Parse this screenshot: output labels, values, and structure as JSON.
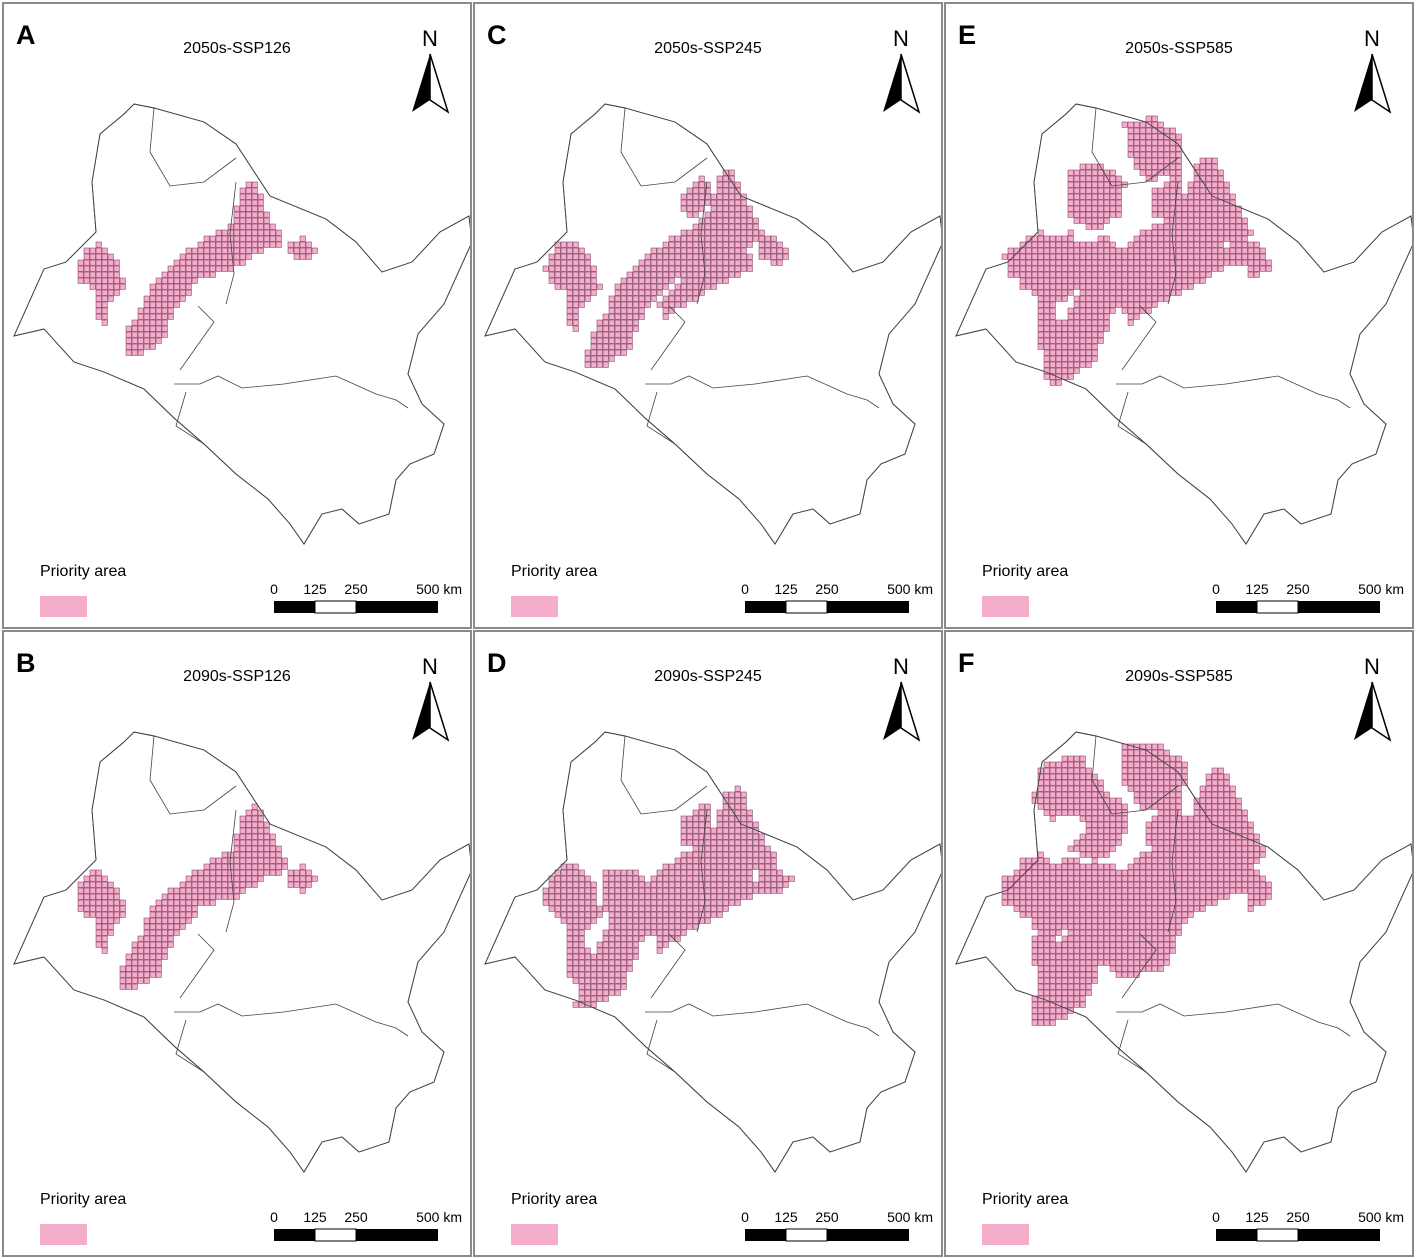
{
  "figure": {
    "panels": [
      {
        "letter": "A",
        "title": "2050s-SSP126",
        "extent": 0.0
      },
      {
        "letter": "B",
        "title": "2090s-SSP126",
        "extent": 0.15
      },
      {
        "letter": "C",
        "title": "2050s-SSP245",
        "extent": 0.3
      },
      {
        "letter": "D",
        "title": "2090s-SSP245",
        "extent": 0.55
      },
      {
        "letter": "E",
        "title": "2050s-SSP585",
        "extent": 0.65
      },
      {
        "letter": "F",
        "title": "2090s-SSP585",
        "extent": 1.0
      }
    ],
    "legend": {
      "label": "Priority area",
      "color": "#f4aecb"
    },
    "scale_bar": {
      "labels": [
        "0",
        "125",
        "250",
        "500 km"
      ]
    },
    "north_arrow": {
      "label": "N"
    },
    "colors": {
      "priority_fill": "#f4aecb",
      "grid_line": "#6b2c50",
      "boundary": "#444444"
    }
  }
}
